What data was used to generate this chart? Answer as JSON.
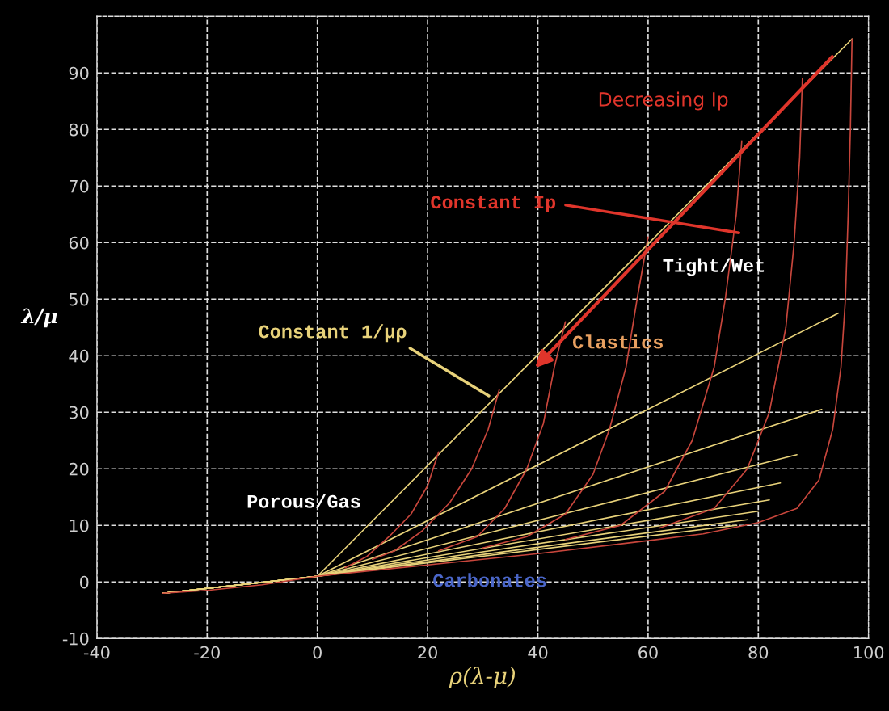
{
  "chart_data": {
    "type": "line",
    "xlabel": "ρ(λ-μ)",
    "ylabel": "λ/μ",
    "xlim": [
      -40,
      100
    ],
    "ylim": [
      -10,
      100
    ],
    "xticks": [
      -40,
      -20,
      0,
      20,
      40,
      60,
      80,
      100
    ],
    "yticks": [
      -10,
      0,
      10,
      20,
      30,
      40,
      50,
      60,
      70,
      80,
      90
    ],
    "grid": true,
    "legend": false,
    "marker": "none",
    "line_style": "solid",
    "series": [
      {
        "color": "#e8d27a",
        "x": [
          -28,
          0,
          97
        ],
        "values": [
          -2,
          1,
          96
        ]
      },
      {
        "color": "#e8d27a",
        "x": [
          -28,
          0,
          94.5
        ],
        "values": [
          -2,
          1,
          47.5
        ]
      },
      {
        "color": "#e8d27a",
        "x": [
          -28,
          0,
          91.5
        ],
        "values": [
          -2,
          1,
          30.5
        ]
      },
      {
        "color": "#e8d27a",
        "x": [
          -28,
          0,
          87
        ],
        "values": [
          -2,
          1,
          22.5
        ]
      },
      {
        "color": "#e8d27a",
        "x": [
          -28,
          0,
          84
        ],
        "values": [
          -2,
          1,
          17.5
        ]
      },
      {
        "color": "#e8d27a",
        "x": [
          -28,
          0,
          82
        ],
        "values": [
          -2,
          1,
          14.5
        ]
      },
      {
        "color": "#e8d27a",
        "x": [
          -28,
          0,
          80
        ],
        "values": [
          -2,
          1,
          12.5
        ]
      },
      {
        "color": "#e8d27a",
        "x": [
          -28,
          0,
          78
        ],
        "values": [
          -2,
          1,
          11
        ]
      },
      {
        "color": "#e8d27a",
        "x": [
          -28,
          0,
          76
        ],
        "values": [
          -2,
          1,
          10
        ]
      },
      {
        "color": "#c8463c",
        "x": [
          22,
          20,
          17,
          13,
          9,
          5
        ],
        "values": [
          23,
          17,
          12,
          8,
          4.5,
          2.5
        ]
      },
      {
        "color": "#c8463c",
        "x": [
          33,
          31,
          28,
          24,
          19,
          14,
          10
        ],
        "values": [
          34,
          27,
          20,
          14,
          9,
          5.5,
          4
        ]
      },
      {
        "color": "#c8463c",
        "x": [
          45,
          43,
          41,
          38,
          34,
          29,
          22
        ],
        "values": [
          46,
          38,
          28,
          20,
          13,
          8,
          5.5
        ]
      },
      {
        "color": "#c8463c",
        "x": [
          60,
          58,
          56,
          53,
          50,
          45,
          38,
          30
        ],
        "values": [
          61,
          50,
          38,
          27,
          19,
          12,
          8,
          6
        ]
      },
      {
        "color": "#c8463c",
        "x": [
          77,
          76,
          74,
          72,
          68,
          63,
          55,
          45
        ],
        "values": [
          78,
          65,
          50,
          38,
          25,
          16,
          10,
          7.5
        ]
      },
      {
        "color": "#c8463c",
        "x": [
          88,
          87.5,
          86.5,
          85,
          82,
          78,
          72,
          62
        ],
        "values": [
          89,
          75,
          60,
          45,
          30,
          20,
          13,
          9.5
        ]
      },
      {
        "color": "#c8463c",
        "x": [
          97,
          96.7,
          96.3,
          95.8,
          95,
          93.5,
          91,
          87,
          80,
          70,
          60,
          40,
          20,
          0,
          -10,
          -20,
          -28
        ],
        "values": [
          96,
          80,
          65,
          50,
          38,
          27,
          18,
          13,
          10.5,
          8.5,
          7.3,
          5,
          3,
          1,
          -0.5,
          -1.5,
          -2
        ]
      }
    ],
    "annotations": [
      "Decreasing Ip",
      "Constant Ip",
      "Constant 1/μρ",
      "Tight/Wet",
      "Clastics",
      "Porous/Gas",
      "Carbonates"
    ]
  }
}
